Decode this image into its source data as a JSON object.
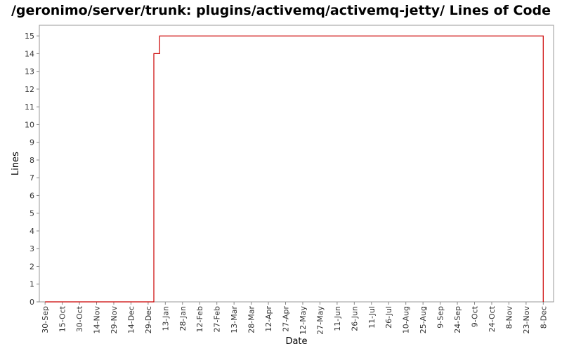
{
  "chart_data": {
    "type": "line",
    "title": "/geronimo/server/trunk: plugins/activemq/activemq-jetty/ Lines of Code",
    "xlabel": "Date",
    "ylabel": "Lines",
    "ylim": [
      0,
      15.6
    ],
    "yticks": [
      "0",
      "1",
      "2",
      "3",
      "4",
      "5",
      "6",
      "7",
      "8",
      "9",
      "10",
      "11",
      "12",
      "13",
      "14",
      "15"
    ],
    "xtick_labels": [
      "30-Sep",
      "15-Oct",
      "30-Oct",
      "14-Nov",
      "29-Nov",
      "14-Dec",
      "29-Dec",
      "13-Jan",
      "28-Jan",
      "12-Feb",
      "27-Feb",
      "13-Mar",
      "28-Mar",
      "12-Apr",
      "27-Apr",
      "12-May",
      "27-May",
      "11-Jun",
      "26-Jun",
      "11-Jul",
      "26-Jul",
      "10-Aug",
      "25-Aug",
      "9-Sep",
      "24-Sep",
      "9-Oct",
      "24-Oct",
      "8-Nov",
      "23-Nov",
      "8-Dec"
    ],
    "xtick_days": [
      0,
      15,
      30,
      45,
      60,
      75,
      90,
      105,
      120,
      135,
      150,
      165,
      180,
      195,
      210,
      225,
      240,
      255,
      270,
      285,
      300,
      315,
      330,
      345,
      360,
      375,
      390,
      405,
      420,
      435
    ],
    "xlim_days": [
      -5,
      444
    ],
    "grid": false,
    "line_color": "#cc0000",
    "series": [
      {
        "x_days": [
          0,
          95,
          95,
          100,
          100,
          435,
          435
        ],
        "values": [
          0,
          0,
          14,
          14,
          15,
          15,
          0
        ]
      }
    ]
  }
}
